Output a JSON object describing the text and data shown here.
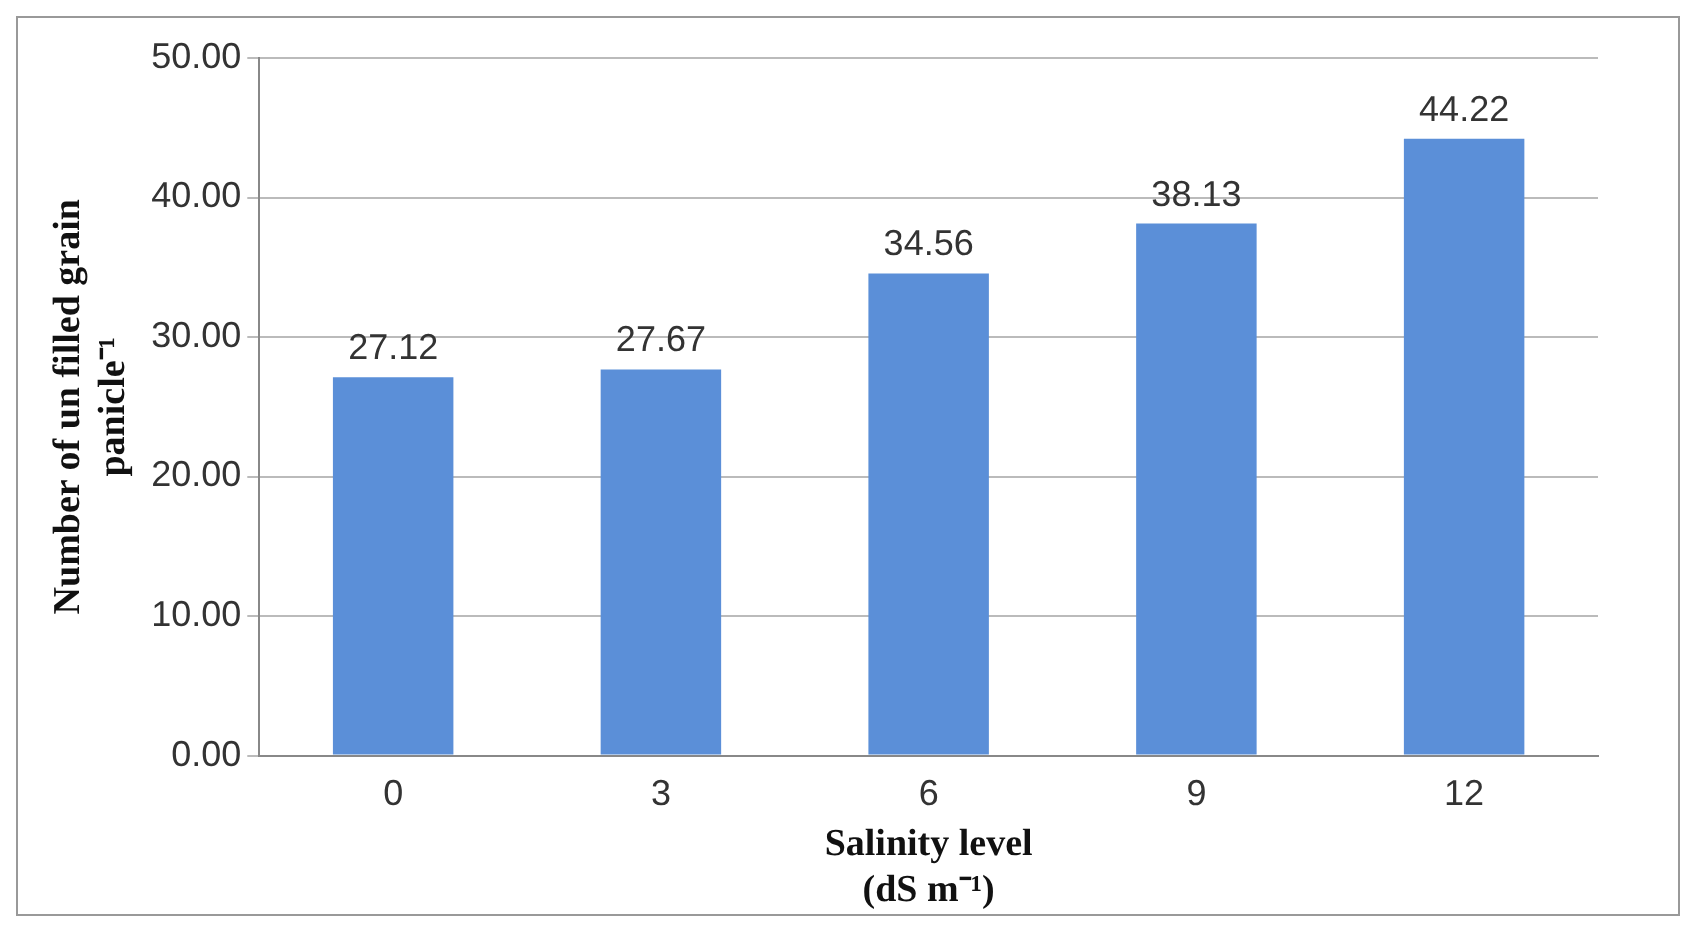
{
  "chart_data": {
    "type": "bar",
    "xlabel": "Salinity level (dS m⁻¹)",
    "ylabel": "Number of un filled grain panicle⁻¹",
    "categories": [
      "0",
      "3",
      "6",
      "9",
      "12"
    ],
    "values": [
      27.12,
      27.67,
      34.56,
      38.13,
      44.22
    ],
    "color": "#5b8fd8",
    "ylim": [
      0,
      50
    ],
    "yticks": [
      {
        "value": 0,
        "label": "0.00"
      },
      {
        "value": 10,
        "label": "10.00"
      },
      {
        "value": 20,
        "label": "20.00"
      },
      {
        "value": 30,
        "label": "30.00"
      },
      {
        "value": 40,
        "label": "40.00"
      },
      {
        "value": 50,
        "label": "50.00"
      }
    ],
    "grid": "y",
    "data_labels": true,
    "legend": false
  }
}
